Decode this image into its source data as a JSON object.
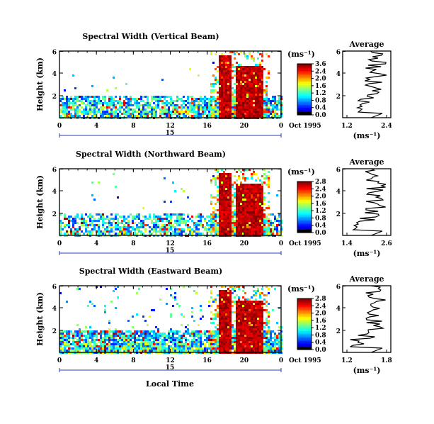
{
  "chart_data": [
    {
      "type": "heatmap",
      "title": "Spectral Width (Vertical Beam)",
      "ylabel": "Height (km)",
      "x_ticks": [
        "0",
        "4",
        "8",
        "12",
        "16",
        "20",
        "0"
      ],
      "y_ticks": [
        "6",
        "4",
        "2"
      ],
      "date_marker": "15",
      "date_label": "Oct 1995",
      "colorbar": {
        "unit": "(ms⁻¹)",
        "ticks": [
          "3.6",
          "2.4",
          "2.0",
          "1.6",
          "1.2",
          "0.8",
          "0.4",
          "0.0"
        ]
      },
      "average": {
        "title": "Average",
        "y_ticks": [
          "6",
          "4",
          "2"
        ],
        "x_ticks": [
          "1.2",
          "2.4"
        ],
        "xlabel": "(ms⁻¹)"
      }
    },
    {
      "type": "heatmap",
      "title": "Spectral Width (Northward Beam)",
      "ylabel": "Height (km)",
      "x_ticks": [
        "0",
        "4",
        "8",
        "12",
        "16",
        "20",
        "0"
      ],
      "y_ticks": [
        "6",
        "4",
        "2"
      ],
      "date_marker": "15",
      "date_label": "Oct 1995",
      "colorbar": {
        "unit": "(ms⁻¹)",
        "ticks": [
          "2.8",
          "2.4",
          "2.0",
          "1.6",
          "1.2",
          "0.8",
          "0.4",
          "0.0"
        ]
      },
      "average": {
        "title": "Average",
        "y_ticks": [
          "6",
          "4",
          "2"
        ],
        "x_ticks": [
          "1.4",
          "2.6"
        ],
        "xlabel": "(ms⁻¹)"
      }
    },
    {
      "type": "heatmap",
      "title": "Spectral Width (Eastward Beam)",
      "ylabel": "Height (km)",
      "x_ticks": [
        "0",
        "4",
        "8",
        "12",
        "16",
        "20",
        "0"
      ],
      "y_ticks": [
        "6",
        "4",
        "2"
      ],
      "date_marker": "15",
      "date_label": "Oct 1995",
      "xlabel": "Local Time",
      "colorbar": {
        "unit": "(ms⁻¹)",
        "ticks": [
          "2.8",
          "2.4",
          "2.0",
          "1.6",
          "1.2",
          "0.8",
          "0.4",
          "0.0"
        ]
      },
      "average": {
        "title": "Average",
        "y_ticks": [
          "6",
          "4",
          "2"
        ],
        "x_ticks": [
          "1.2",
          "1.8"
        ],
        "xlabel": "(ms⁻¹)"
      }
    }
  ]
}
